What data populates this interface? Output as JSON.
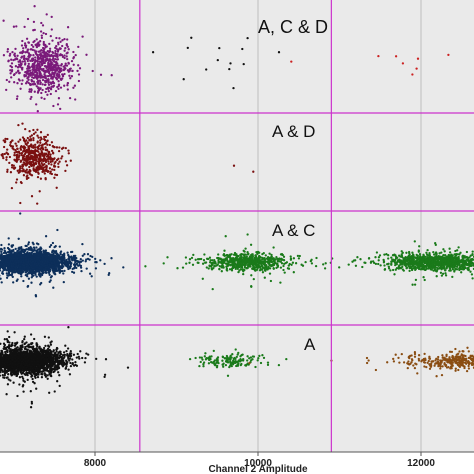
{
  "chart_data": {
    "type": "scatter",
    "xlabel": "Channel 2 Amplitude",
    "ylabel": "",
    "title": "",
    "xlim": [
      7000,
      13300
    ],
    "x_ticks": [
      "8000",
      "10000",
      "12000"
    ],
    "x_tick_values": [
      8000,
      10000,
      12000
    ],
    "threshold_lines_x": [
      8550,
      10900
    ],
    "grid": true,
    "colors": {
      "background": "#eaeaea",
      "grid": "#bdbdbd",
      "threshold": "#cc33cc",
      "purple": "#7a1a7a",
      "dark_red": "#7a1010",
      "red": "#cc2222",
      "navy": "#0d2f5a",
      "green": "#1a7a1a",
      "black": "#111111",
      "brown": "#8a4d12"
    },
    "panels": [
      {
        "label": "A, C & D",
        "clusters": [
          {
            "color": "purple",
            "center": [
              7350,
              0
            ],
            "count": 700,
            "spread": [
              190,
              0.24
            ]
          },
          {
            "color": "black",
            "center": [
              9700,
              0.05
            ],
            "count": 14,
            "spread": [
              350,
              0.18
            ]
          },
          {
            "color": "red",
            "center": [
              12100,
              0.0
            ],
            "count": 10,
            "spread": [
              450,
              0.2
            ]
          }
        ]
      },
      {
        "label": "A & D",
        "clusters": [
          {
            "color": "dark_red",
            "center": [
              7250,
              0.0
            ],
            "count": 500,
            "spread": [
              150,
              0.2
            ]
          },
          {
            "color": "dark_red",
            "center": [
              9900,
              -0.1
            ],
            "count": 3,
            "spread": [
              250,
              0.4
            ]
          }
        ]
      },
      {
        "label": "A & C",
        "clusters": [
          {
            "color": "navy",
            "center": [
              7200,
              0.0
            ],
            "count": 2600,
            "spread": [
              230,
              0.09
            ]
          },
          {
            "color": "green",
            "center": [
              9850,
              0.0
            ],
            "count": 650,
            "spread": [
              250,
              0.07
            ]
          },
          {
            "color": "green",
            "center": [
              12200,
              0.0
            ],
            "count": 1100,
            "spread": [
              300,
              0.07
            ]
          }
        ]
      },
      {
        "label": "A",
        "clusters": [
          {
            "color": "black",
            "center": [
              7150,
              0.0
            ],
            "count": 2200,
            "spread": [
              230,
              0.1
            ]
          },
          {
            "color": "green",
            "center": [
              9650,
              0.0
            ],
            "count": 150,
            "spread": [
              200,
              0.05
            ]
          },
          {
            "color": "brown",
            "center": [
              12500,
              0.0
            ],
            "count": 400,
            "spread": [
              350,
              0.06
            ]
          }
        ]
      }
    ]
  }
}
